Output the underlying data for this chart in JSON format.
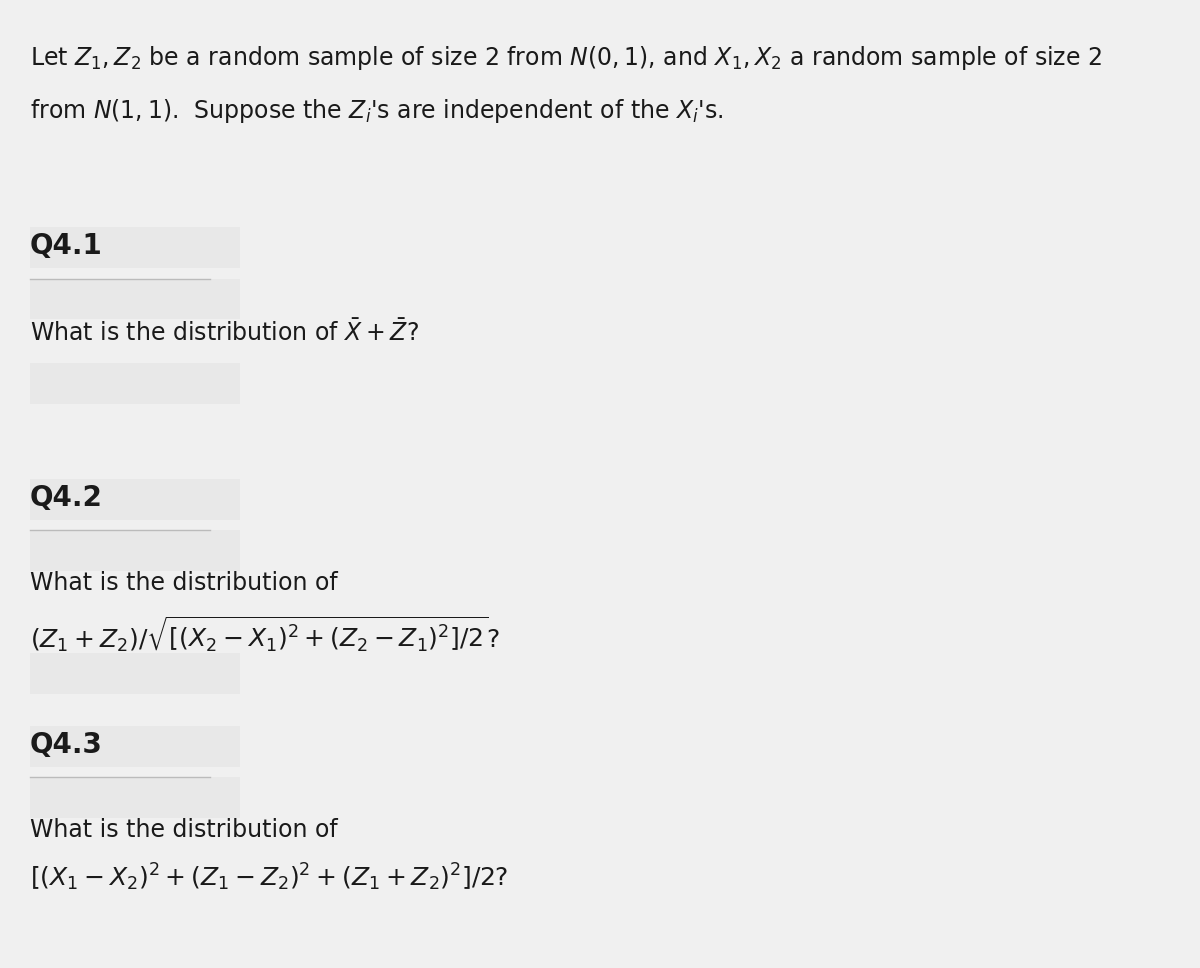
{
  "background_color": "#f0f0f0",
  "text_color": "#1a1a1a",
  "fig_width": 12.0,
  "fig_height": 9.68,
  "dpi": 100,
  "intro_line1": "Let $Z_1, Z_2$ be a random sample of size 2 from $N(0, 1)$, and $X_1, X_2$ a random sample of size 2",
  "intro_line2": "from $N(1, 1)$.  Suppose the $Z_i$'s are independent of the $X_i$'s.",
  "q41_label": "Q4.1",
  "q41_text": "What is the distribution of $\\bar{X} + \\bar{Z}$?",
  "q42_label": "Q4.2",
  "q42_text": "What is the distribution of",
  "q42_formula": "$(Z_1 + Z_2)/\\sqrt{[(X_2 - X_1)^2 + (Z_2 - Z_1)^2]/2}$?",
  "q43_label": "Q4.3",
  "q43_text": "What is the distribution of",
  "q43_formula": "$[(X_1 - X_2)^2 + (Z_1 - Z_2)^2 + (Z_1 + Z_2)^2]/2$?",
  "intro_fontsize": 17,
  "label_fontsize": 20,
  "body_fontsize": 17,
  "formula_fontsize": 18,
  "divider_color": "#bbbbbb",
  "white_box_color": "#ffffff",
  "light_box_color": "#e8e8e8"
}
